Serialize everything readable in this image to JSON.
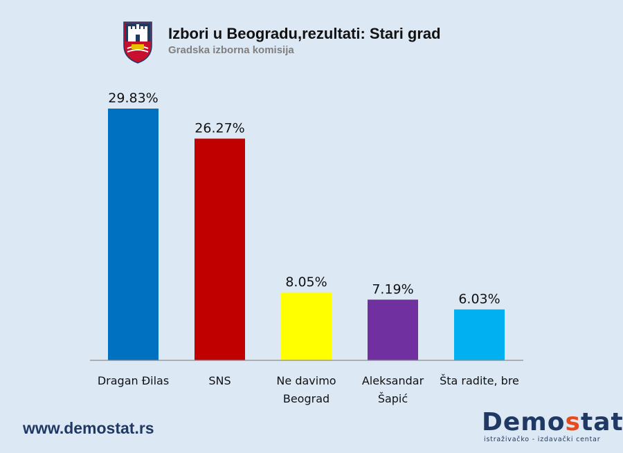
{
  "header": {
    "title": "Izbori u Beogradu,rezultati: Stari grad",
    "subtitle": "Gradska izborna komisija",
    "crest_icon": "belgrade-coat-of-arms-icon"
  },
  "footer": {
    "website": "www.demostat.rs",
    "logo": {
      "prefix": "Demo",
      "accent": "s",
      "suffix": "tat",
      "tagline": "istraživačko - izdavački  centar",
      "accent_color": "#e8491d",
      "text_color": "#1f3864"
    }
  },
  "chart_data": {
    "type": "bar",
    "title": "Izbori u Beogradu,rezultati: Stari grad",
    "subtitle": "Gradska izborna komisija",
    "categories": [
      [
        "Dragan Đilas"
      ],
      [
        "SNS"
      ],
      [
        "Ne davimo",
        "Beograd"
      ],
      [
        "Aleksandar",
        "Šapić"
      ],
      [
        "Šta radite, bre"
      ]
    ],
    "values": [
      29.83,
      26.27,
      8.05,
      7.19,
      6.03
    ],
    "value_labels": [
      "29.83%",
      "26.27%",
      "8.05%",
      "7.19%",
      "6.03%"
    ],
    "colors": [
      "#0070c0",
      "#c00000",
      "#ffff00",
      "#7030a0",
      "#00b0f0"
    ],
    "ylim": [
      0,
      30
    ],
    "grid": false,
    "legend": "none",
    "xlabel": "",
    "ylabel": ""
  }
}
